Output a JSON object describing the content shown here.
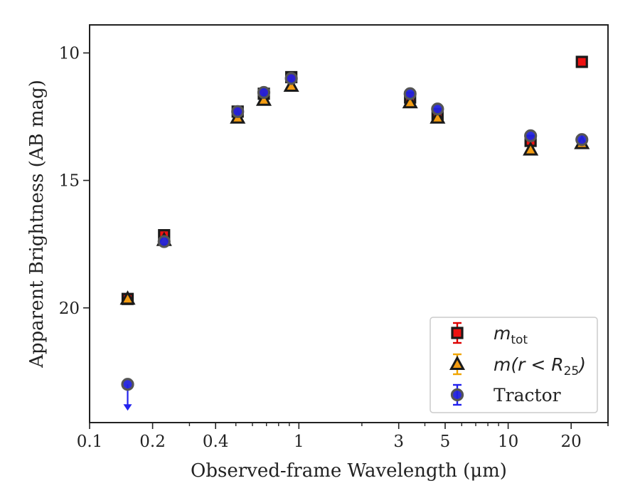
{
  "chart_data": {
    "type": "scatter",
    "title": "",
    "xlabel": "Observed-frame Wavelength (μm)",
    "ylabel": "Apparent Brightness (AB mag)",
    "xscale": "log",
    "xlim": [
      0.1,
      30
    ],
    "ylim": [
      8.9,
      24.5
    ],
    "y_inverted": true,
    "x_ticks": [
      {
        "value": 0.1,
        "label": "0.1"
      },
      {
        "value": 0.2,
        "label": "0.2"
      },
      {
        "value": 0.4,
        "label": "0.4"
      },
      {
        "value": 1,
        "label": "1"
      },
      {
        "value": 3,
        "label": "3"
      },
      {
        "value": 5,
        "label": "5"
      },
      {
        "value": 10,
        "label": "10"
      },
      {
        "value": 20,
        "label": "20"
      }
    ],
    "y_ticks": [
      {
        "value": 10,
        "label": "10"
      },
      {
        "value": 15,
        "label": "15"
      },
      {
        "value": 20,
        "label": "20"
      }
    ],
    "legend_position": "lower-right",
    "series": [
      {
        "name": "m_tot",
        "legend_main": "m",
        "legend_sub": "tot",
        "marker": "square",
        "color": "#ee1111",
        "edge": "#1a1a1a",
        "errorbar_color": "#dd0000",
        "points": [
          {
            "x": 0.152,
            "y": 19.65
          },
          {
            "x": 0.227,
            "y": 17.15
          },
          {
            "x": 0.51,
            "y": 12.3
          },
          {
            "x": 0.68,
            "y": 11.6
          },
          {
            "x": 0.92,
            "y": 10.95
          },
          {
            "x": 3.4,
            "y": 11.75
          },
          {
            "x": 4.6,
            "y": 12.4
          },
          {
            "x": 12.8,
            "y": 13.45
          },
          {
            "x": 22.5,
            "y": 10.35
          }
        ]
      },
      {
        "name": "m(r<R_25)",
        "legend_main": "m(r < R",
        "legend_sub": "25",
        "legend_close": ")",
        "marker": "triangle",
        "color": "#f39c12",
        "edge": "#1a1a1a",
        "errorbar_color": "#f0a500",
        "points": [
          {
            "x": 0.152,
            "y": 19.65
          },
          {
            "x": 0.227,
            "y": 17.35
          },
          {
            "x": 0.51,
            "y": 12.55
          },
          {
            "x": 0.68,
            "y": 11.85
          },
          {
            "x": 0.92,
            "y": 11.3
          },
          {
            "x": 3.4,
            "y": 11.95
          },
          {
            "x": 4.6,
            "y": 12.55
          },
          {
            "x": 12.8,
            "y": 13.8
          },
          {
            "x": 22.5,
            "y": 13.55
          }
        ]
      },
      {
        "name": "Tractor",
        "legend_main": "Tractor",
        "marker": "circle",
        "color": "#2222dd",
        "edge": "#555555",
        "errorbar_color": "#2222ee",
        "points": [
          {
            "x": 0.152,
            "y": 23.0,
            "upper_limit": true
          },
          {
            "x": 0.227,
            "y": 17.4
          },
          {
            "x": 0.51,
            "y": 12.3
          },
          {
            "x": 0.68,
            "y": 11.55
          },
          {
            "x": 0.92,
            "y": 11.0
          },
          {
            "x": 3.4,
            "y": 11.6
          },
          {
            "x": 4.6,
            "y": 12.2
          },
          {
            "x": 12.8,
            "y": 13.25
          },
          {
            "x": 22.5,
            "y": 13.4
          }
        ]
      }
    ]
  }
}
